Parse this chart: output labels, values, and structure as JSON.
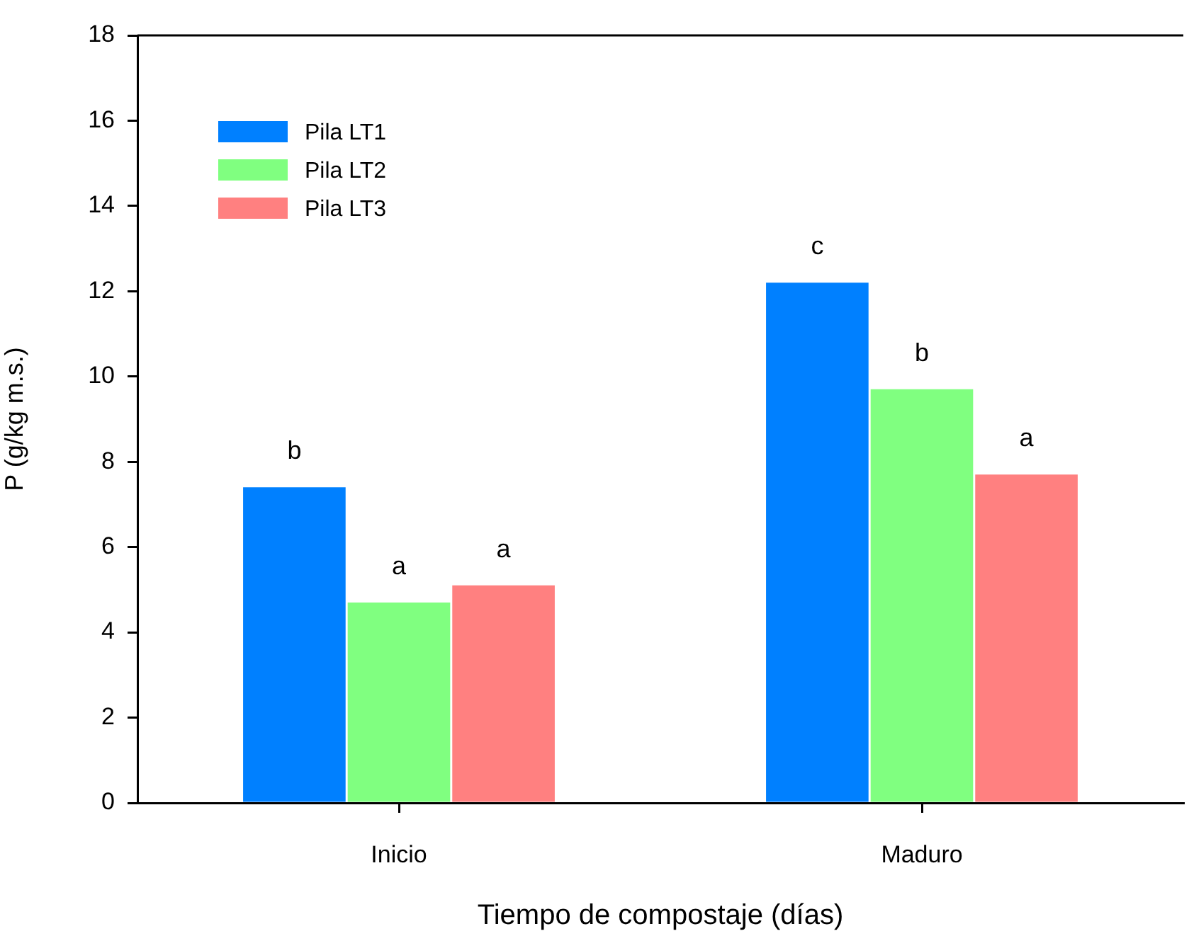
{
  "chart_data": {
    "type": "bar",
    "xlabel": "Tiempo de compostaje (días)",
    "ylabel": "P (g/kg m.s.)",
    "categories": [
      "Inicio",
      "Maduro"
    ],
    "series": [
      {
        "name": "Pila LT1",
        "color": "#0080ff",
        "values": [
          7.4,
          12.2
        ],
        "value_labels": [
          "b",
          "c"
        ]
      },
      {
        "name": "Pila LT2",
        "color": "#80ff80",
        "values": [
          4.7,
          9.7
        ],
        "value_labels": [
          "a",
          "b"
        ]
      },
      {
        "name": "Pila LT3",
        "color": "#ff8080",
        "values": [
          5.1,
          7.7
        ],
        "value_labels": [
          "a",
          "a"
        ]
      }
    ],
    "ylim": [
      0,
      18
    ],
    "yticks": [
      0,
      2,
      4,
      6,
      8,
      10,
      12,
      14,
      16,
      18
    ],
    "legend": "top left"
  }
}
